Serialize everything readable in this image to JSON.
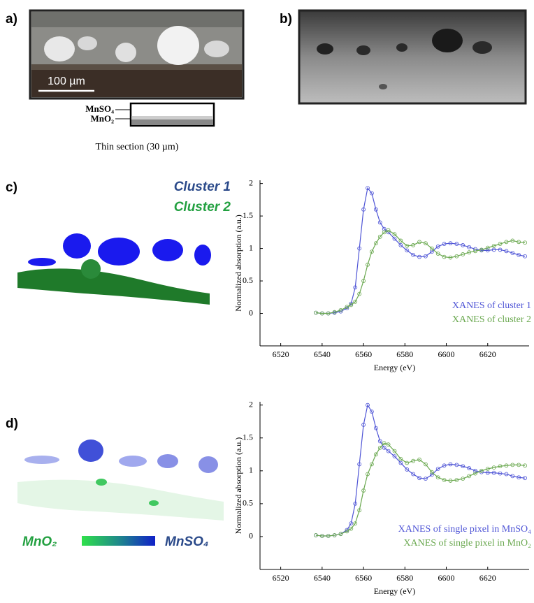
{
  "panels": {
    "a": {
      "label": "a)",
      "scale_bar": "100 µm",
      "layer_labels": [
        "MnSO₄",
        "MnO₂"
      ],
      "caption": "Thin section (30 µm)"
    },
    "b": {
      "label": "b)"
    },
    "c": {
      "label": "c)",
      "map_legend": [
        "Cluster 1",
        "Cluster 2"
      ]
    },
    "d": {
      "label": "d)",
      "colorbar": [
        "MnO₂",
        "MnSO₄"
      ]
    }
  },
  "chart_data": [
    {
      "type": "line",
      "xlabel": "Energy (eV)",
      "ylabel": "Normalized absorption (a.u.)",
      "xlim": [
        6510,
        6640
      ],
      "xticks": [
        6520,
        6540,
        6560,
        6580,
        6600,
        6620
      ],
      "ylim": [
        -0.5,
        2.05
      ],
      "yticks": [
        0,
        0.5,
        1,
        1.5,
        2
      ],
      "legend": "lower right",
      "x": [
        6537,
        6540,
        6543,
        6546,
        6549,
        6552,
        6554,
        6556,
        6558,
        6560,
        6562,
        6564,
        6566,
        6568,
        6570,
        6572,
        6575,
        6578,
        6581,
        6584,
        6587,
        6590,
        6593,
        6596,
        6599,
        6602,
        6605,
        6608,
        6611,
        6614,
        6617,
        6620,
        6623,
        6626,
        6629,
        6632,
        6635,
        6638
      ],
      "series": [
        {
          "name": "XANES of cluster 1",
          "color": "#4f55d6",
          "values": [
            0.01,
            0,
            0,
            0.01,
            0.03,
            0.08,
            0.15,
            0.4,
            1.0,
            1.6,
            1.93,
            1.85,
            1.6,
            1.4,
            1.3,
            1.25,
            1.15,
            1.05,
            0.97,
            0.9,
            0.87,
            0.88,
            0.95,
            1.03,
            1.07,
            1.08,
            1.07,
            1.05,
            1.02,
            0.99,
            0.97,
            0.97,
            0.98,
            0.98,
            0.96,
            0.93,
            0.9,
            0.88
          ]
        },
        {
          "name": "XANES of cluster 2",
          "color": "#6aa84f",
          "values": [
            0.01,
            0,
            0,
            0.02,
            0.05,
            0.1,
            0.13,
            0.18,
            0.3,
            0.5,
            0.75,
            0.95,
            1.08,
            1.18,
            1.25,
            1.28,
            1.22,
            1.12,
            1.04,
            1.05,
            1.1,
            1.08,
            1.0,
            0.92,
            0.87,
            0.86,
            0.88,
            0.91,
            0.94,
            0.96,
            0.98,
            1.01,
            1.04,
            1.07,
            1.1,
            1.12,
            1.1,
            1.09
          ]
        }
      ]
    },
    {
      "type": "line",
      "xlabel": "Energy (eV)",
      "ylabel": "Normalized absorption (a.u.)",
      "xlim": [
        6510,
        6640
      ],
      "xticks": [
        6520,
        6540,
        6560,
        6580,
        6600,
        6620
      ],
      "ylim": [
        -0.5,
        2.05
      ],
      "yticks": [
        0,
        0.5,
        1,
        1.5,
        2
      ],
      "legend": "lower right",
      "x": [
        6537,
        6540,
        6543,
        6546,
        6549,
        6552,
        6554,
        6556,
        6558,
        6560,
        6562,
        6564,
        6566,
        6568,
        6570,
        6572,
        6575,
        6578,
        6581,
        6584,
        6587,
        6590,
        6593,
        6596,
        6599,
        6602,
        6605,
        6608,
        6611,
        6614,
        6617,
        6620,
        6623,
        6626,
        6629,
        6632,
        6635,
        6638
      ],
      "series": [
        {
          "name": "XANES of single pixel in MnSO₄",
          "color": "#4f55d6",
          "values": [
            0.02,
            0.01,
            0.01,
            0.02,
            0.04,
            0.1,
            0.2,
            0.5,
            1.1,
            1.7,
            2.0,
            1.9,
            1.65,
            1.45,
            1.35,
            1.3,
            1.22,
            1.12,
            1.02,
            0.95,
            0.89,
            0.88,
            0.94,
            1.03,
            1.08,
            1.1,
            1.09,
            1.07,
            1.04,
            1.0,
            0.98,
            0.97,
            0.97,
            0.96,
            0.95,
            0.92,
            0.9,
            0.89
          ]
        },
        {
          "name": "XANES of single pixel in MnO₂",
          "color": "#6aa84f",
          "values": [
            0.02,
            0.01,
            0.01,
            0.02,
            0.04,
            0.08,
            0.12,
            0.2,
            0.4,
            0.7,
            0.95,
            1.1,
            1.25,
            1.35,
            1.42,
            1.4,
            1.3,
            1.18,
            1.12,
            1.15,
            1.17,
            1.1,
            0.98,
            0.9,
            0.86,
            0.85,
            0.86,
            0.88,
            0.92,
            0.96,
            1.0,
            1.03,
            1.05,
            1.07,
            1.08,
            1.09,
            1.09,
            1.08
          ]
        }
      ]
    }
  ]
}
